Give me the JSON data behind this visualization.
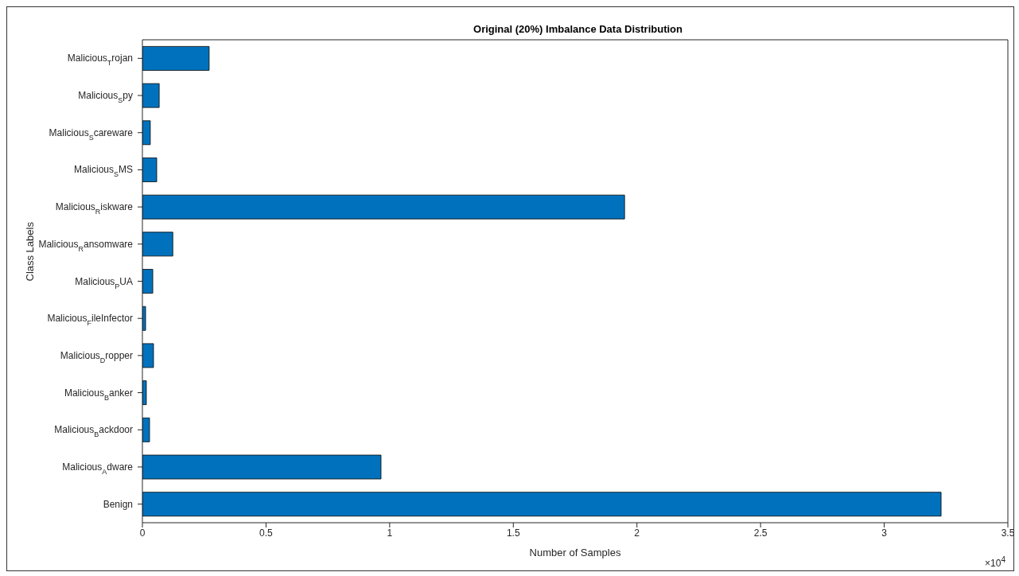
{
  "chart_data": {
    "type": "bar",
    "orientation": "horizontal",
    "title": "Original (20%) Imbalance Data Distribution",
    "xlabel": "Number of Samples",
    "ylabel": "Class Labels",
    "categories": [
      "Malicious$_{T}$rojan",
      "Malicious$_{S}$py",
      "Malicious$_{S}$careware",
      "Malicious$_{S}$MS",
      "Malicious$_{R}$iskware",
      "Malicious$_{R}$ansomware",
      "Malicious$_{P}$UA",
      "Malicious$_{F}$ileInfector",
      "Malicious$_{D}$ropper",
      "Malicious$_{B}$anker",
      "Malicious$_{B}$ackdoor",
      "Malicious$_{A}$dware",
      "Benign"
    ],
    "values": [
      0.27,
      0.068,
      0.032,
      0.058,
      1.95,
      0.123,
      0.042,
      0.013,
      0.045,
      0.016,
      0.029,
      0.965,
      3.23
    ],
    "color": "#0072bd",
    "xlim": [
      0,
      3.5
    ],
    "xticks": [
      0,
      0.5,
      1,
      1.5,
      2,
      2.5,
      3,
      3.5
    ],
    "annotations": [
      "×10$^{4}$"
    ]
  }
}
